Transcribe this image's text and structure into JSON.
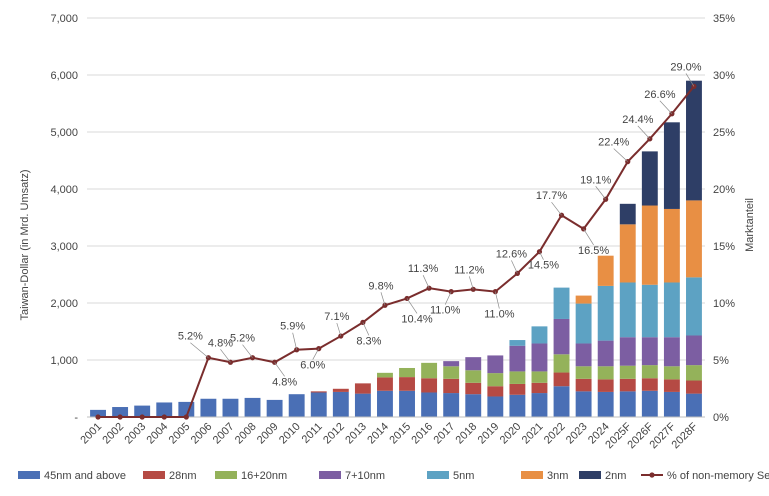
{
  "chart_data": {
    "type": "bar",
    "stacked": true,
    "title": "",
    "ylabel": "Taiwan-Dollar (in Mrd. Umsatz)",
    "y2label": "Marktanteil",
    "ylim": [
      0,
      7000
    ],
    "y2lim": [
      0,
      35
    ],
    "yticks": [
      "-",
      "1,000",
      "2,000",
      "3,000",
      "4,000",
      "5,000",
      "6,000",
      "7,000"
    ],
    "y2ticks": [
      "0%",
      "5%",
      "10%",
      "15%",
      "20%",
      "25%",
      "30%",
      "35%"
    ],
    "grid": true,
    "legend_position": "bottom",
    "categories": [
      "2001",
      "2002",
      "2003",
      "2004",
      "2005",
      "2006",
      "2007",
      "2008",
      "2009",
      "2010",
      "2011",
      "2012",
      "2013",
      "2014",
      "2015",
      "2016",
      "2017",
      "2018",
      "2019",
      "2020",
      "2021",
      "2022",
      "2023",
      "2024",
      "2025F",
      "2026F",
      "2027F",
      "2028F"
    ],
    "series": [
      {
        "name": "45nm and above",
        "color": "#4a6fb5",
        "values": [
          125,
          175,
          200,
          255,
          265,
          320,
          320,
          335,
          300,
          400,
          430,
          440,
          410,
          460,
          460,
          430,
          420,
          400,
          360,
          390,
          420,
          540,
          450,
          440,
          450,
          460,
          440,
          410
        ]
      },
      {
        "name": "28nm",
        "color": "#b54a44",
        "values": [
          0,
          0,
          0,
          0,
          0,
          0,
          0,
          0,
          0,
          0,
          20,
          55,
          180,
          235,
          240,
          250,
          250,
          200,
          180,
          190,
          180,
          240,
          220,
          220,
          220,
          220,
          220,
          230
        ]
      },
      {
        "name": "16+20nm",
        "color": "#94b25a",
        "values": [
          0,
          0,
          0,
          0,
          0,
          0,
          0,
          0,
          0,
          0,
          0,
          0,
          0,
          80,
          160,
          270,
          220,
          220,
          230,
          220,
          200,
          320,
          220,
          230,
          230,
          230,
          230,
          270
        ]
      },
      {
        "name": "7+10nm",
        "color": "#7c5ea2",
        "values": [
          0,
          0,
          0,
          0,
          0,
          0,
          0,
          0,
          0,
          0,
          0,
          0,
          0,
          0,
          0,
          0,
          90,
          230,
          310,
          450,
          490,
          620,
          400,
          450,
          500,
          490,
          510,
          520
        ]
      },
      {
        "name": "5nm",
        "color": "#5da2c3",
        "values": [
          0,
          0,
          0,
          0,
          0,
          0,
          0,
          0,
          0,
          0,
          0,
          0,
          0,
          0,
          0,
          0,
          0,
          0,
          0,
          100,
          300,
          550,
          700,
          960,
          960,
          920,
          960,
          1020
        ]
      },
      {
        "name": "3nm",
        "color": "#e88f44",
        "values": [
          0,
          0,
          0,
          0,
          0,
          0,
          0,
          0,
          0,
          0,
          0,
          0,
          0,
          0,
          0,
          0,
          0,
          0,
          0,
          0,
          0,
          0,
          140,
          530,
          1020,
          1390,
          1290,
          1350
        ]
      },
      {
        "name": "2nm",
        "color": "#2e3e66",
        "values": [
          0,
          0,
          0,
          0,
          0,
          0,
          0,
          0,
          0,
          0,
          0,
          0,
          0,
          0,
          0,
          0,
          0,
          0,
          0,
          0,
          0,
          0,
          0,
          0,
          360,
          950,
          1520,
          2100
        ]
      }
    ],
    "line": {
      "name": "% of non-memory Semis",
      "color": "#7a2d2d",
      "axis": "right",
      "values": [
        0,
        0,
        0,
        0,
        0,
        5.2,
        4.8,
        5.2,
        4.8,
        5.9,
        6.0,
        7.1,
        8.3,
        9.8,
        10.4,
        11.3,
        11.0,
        11.2,
        11.0,
        12.6,
        14.5,
        17.7,
        16.5,
        19.1,
        22.4,
        24.4,
        26.6,
        29.0
      ],
      "labels": [
        "",
        "",
        "",
        "",
        "",
        "5.2%",
        "4.8%",
        "5.2%",
        "4.8%",
        "5.9%",
        "6.0%",
        "7.1%",
        "8.3%",
        "9.8%",
        "10.4%",
        "11.3%",
        "11.0%",
        "11.2%",
        "11.0%",
        "12.6%",
        "14.5%",
        "17.7%",
        "16.5%",
        "19.1%",
        "22.4%",
        "24.4%",
        "26.6%",
        "29.0%"
      ]
    }
  }
}
